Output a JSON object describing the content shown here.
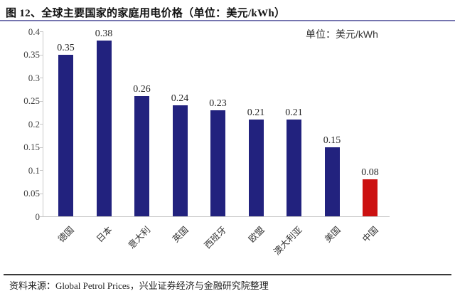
{
  "header": {
    "title": "图 12、全球主要国家的家庭用电价格（单位：美元/kWh）"
  },
  "chart": {
    "unit_label": "单位：美元/kWh"
  },
  "chart_data": {
    "type": "bar",
    "title": "全球主要国家的家庭用电价格",
    "unit": "美元/kWh",
    "categories": [
      "德国",
      "日本",
      "意大利",
      "英国",
      "西班牙",
      "欧盟",
      "澳大利亚",
      "美国",
      "中国"
    ],
    "values": [
      0.35,
      0.38,
      0.26,
      0.24,
      0.23,
      0.21,
      0.21,
      0.15,
      0.08
    ],
    "value_labels": [
      "0.35",
      "0.38",
      "0.26",
      "0.24",
      "0.23",
      "0.21",
      "0.21",
      "0.15",
      "0.08"
    ],
    "highlight_category": "中国",
    "xlabel": "",
    "ylabel": "",
    "ylim": [
      0,
      0.4
    ],
    "ytick_labels": [
      "0",
      "0.05",
      "0.1",
      "0.15",
      "0.2",
      "0.25",
      "0.3",
      "0.35",
      "0.4"
    ],
    "grid": false,
    "legend_position": "none"
  },
  "colors": {
    "bar_default": "#22227e",
    "bar_highlight": "#cc1111",
    "axis": "#c8c8c8",
    "title_underline": "#8c8cc0",
    "footer_rule": "#3a3a3a"
  },
  "footer": {
    "source": "资料来源：Global Petrol Prices，兴业证券经济与金融研究院整理"
  }
}
